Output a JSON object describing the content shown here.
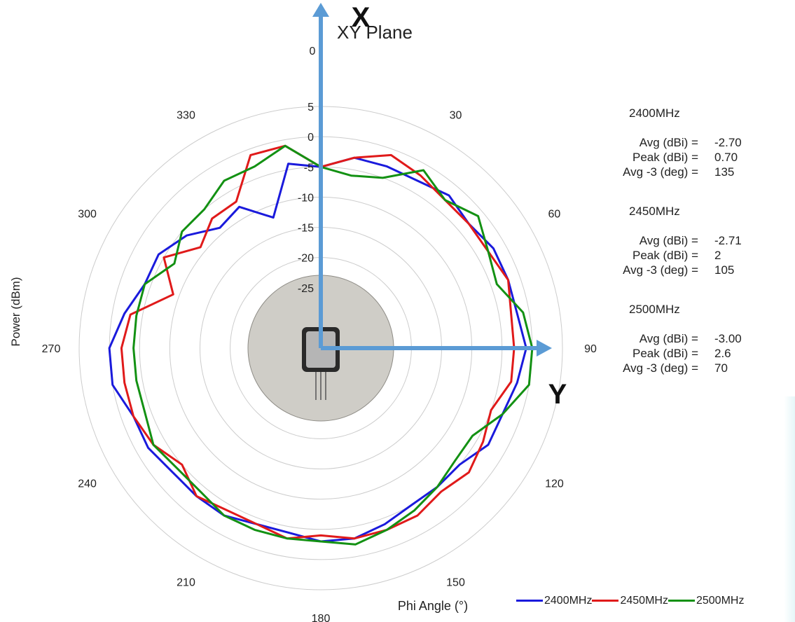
{
  "chart_data": {
    "type": "polar-line",
    "title": "XY Plane",
    "xlabel": "Phi  Angle (°)",
    "ylabel": "Power (dBm)",
    "radial_ticks": [
      5,
      0,
      -5,
      -10,
      -15,
      -20,
      -25
    ],
    "radial_range": [
      -35,
      5
    ],
    "angle_ticks": [
      0,
      30,
      60,
      90,
      120,
      150,
      180,
      210,
      240,
      270,
      300,
      330
    ],
    "axis_markers": {
      "x": "X",
      "y": "Y"
    },
    "angles": [
      0,
      10,
      20,
      30,
      40,
      50,
      60,
      70,
      80,
      90,
      100,
      110,
      120,
      130,
      140,
      150,
      160,
      170,
      180,
      190,
      200,
      210,
      220,
      230,
      240,
      250,
      260,
      270,
      280,
      290,
      300,
      310,
      320,
      330,
      340,
      350
    ],
    "series": [
      {
        "name": "2400MHz",
        "color": "#1a1adc",
        "values": [
          -5,
          -3,
          -3,
          -3,
          -2,
          -3,
          -2,
          -2,
          -2,
          -1,
          -2,
          -3,
          -3,
          -5,
          -5,
          -5,
          -4,
          -3,
          -3,
          -4,
          -4,
          -3,
          -3,
          -3,
          -2,
          -2,
          0,
          0,
          -2,
          -4,
          -4,
          -6,
          -9,
          -8,
          -12,
          -4
        ]
      },
      {
        "name": "2450MHz",
        "color": "#e01a1a",
        "values": [
          -5,
          -3,
          -1,
          -2,
          -3,
          -3,
          -3,
          -2,
          -3,
          -3,
          -3,
          -5,
          -4,
          -3,
          -4,
          -3,
          -3,
          -3,
          -4,
          -3,
          -4,
          -4,
          -3,
          -5,
          -3,
          -2,
          -2,
          -2,
          -3,
          -9,
          -5,
          -9,
          -7,
          -7,
          -1,
          -1
        ]
      },
      {
        "name": "2500MHz",
        "color": "#139113",
        "values": [
          -5,
          -6,
          -5,
          -1,
          -3,
          -1,
          -3,
          -4,
          -1,
          0,
          0,
          -3,
          -6,
          -6,
          -5,
          -4,
          -3,
          -2,
          -3,
          -3,
          -3,
          -3,
          -4,
          -4,
          -3,
          -4,
          -4,
          -4,
          -4,
          -4,
          -7,
          -5,
          -5,
          -3,
          -3,
          -1
        ]
      }
    ]
  },
  "stats": [
    {
      "heading": "2400MHz",
      "rows": [
        {
          "label": "Avg (dBi) =",
          "value": "-2.70"
        },
        {
          "label": "Peak (dBi) =",
          "value": "0.70"
        },
        {
          "label": "Avg -3 (deg) =",
          "value": "135"
        }
      ]
    },
    {
      "heading": "2450MHz",
      "rows": [
        {
          "label": "Avg (dBi) =",
          "value": "-2.71"
        },
        {
          "label": "Peak (dBi) =",
          "value": "2"
        },
        {
          "label": "Avg -3 (deg) =",
          "value": "105"
        }
      ]
    },
    {
      "heading": "2500MHz",
      "rows": [
        {
          "label": "Avg (dBi) =",
          "value": "-3.00"
        },
        {
          "label": "Peak (dBi) =",
          "value": "2.6"
        },
        {
          "label": "Avg -3 (deg) =",
          "value": "70"
        }
      ]
    }
  ],
  "colors": {
    "axis_arrow": "#5b9bd5",
    "grid": "#cccccc",
    "device_disc": "#cfcdc7"
  },
  "icons": {
    "device": "pcb-module-icon"
  }
}
